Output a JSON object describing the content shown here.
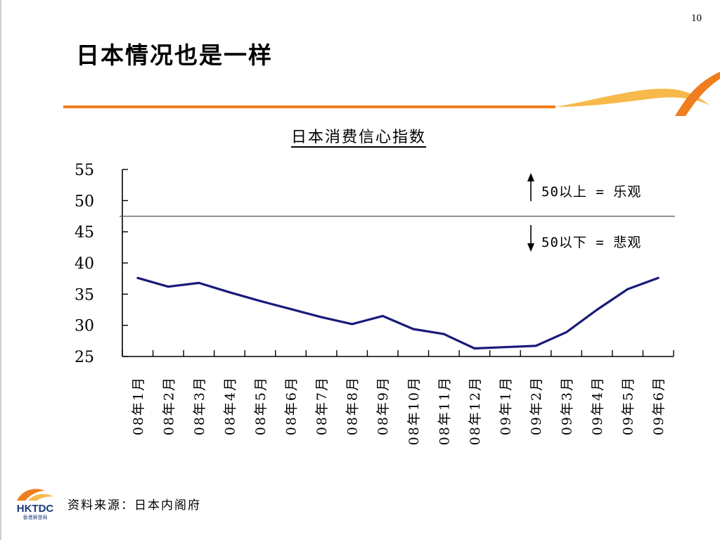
{
  "page_number": "10",
  "title": "日本情况也是一样",
  "annotations": {
    "optimistic": "50以上 = 乐观",
    "pessimistic": "50以下 = 悲观"
  },
  "footer": {
    "source": "资料来源：日本内阁府",
    "logo_text": "HKTDC",
    "logo_subtext": "香港貿發局"
  },
  "colors": {
    "line": "#1a1a7a",
    "accent_orange": "#f07d1e",
    "accent_yellow": "#f6b94a"
  },
  "chart_data": {
    "type": "line",
    "title": "日本消费信心指数",
    "xlabel": "",
    "ylabel": "",
    "ylim": [
      25,
      55
    ],
    "yticks": [
      55,
      50,
      45,
      40,
      35,
      30,
      25
    ],
    "reference_line": 47.5,
    "categories": [
      "08年1月",
      "08年2月",
      "08年3月",
      "08年4月",
      "08年5月",
      "08年6月",
      "08年7月",
      "08年8月",
      "08年9月",
      "08年10月",
      "08年11月",
      "08年12月",
      "09年1月",
      "09年2月",
      "09年3月",
      "09年4月",
      "09年5月",
      "09年6月"
    ],
    "values": [
      37.6,
      36.2,
      36.8,
      35.3,
      33.9,
      32.6,
      31.3,
      30.2,
      31.5,
      29.4,
      28.6,
      26.3,
      26.5,
      26.7,
      28.9,
      32.5,
      35.8,
      37.6
    ],
    "grid": false,
    "legend": "none"
  }
}
